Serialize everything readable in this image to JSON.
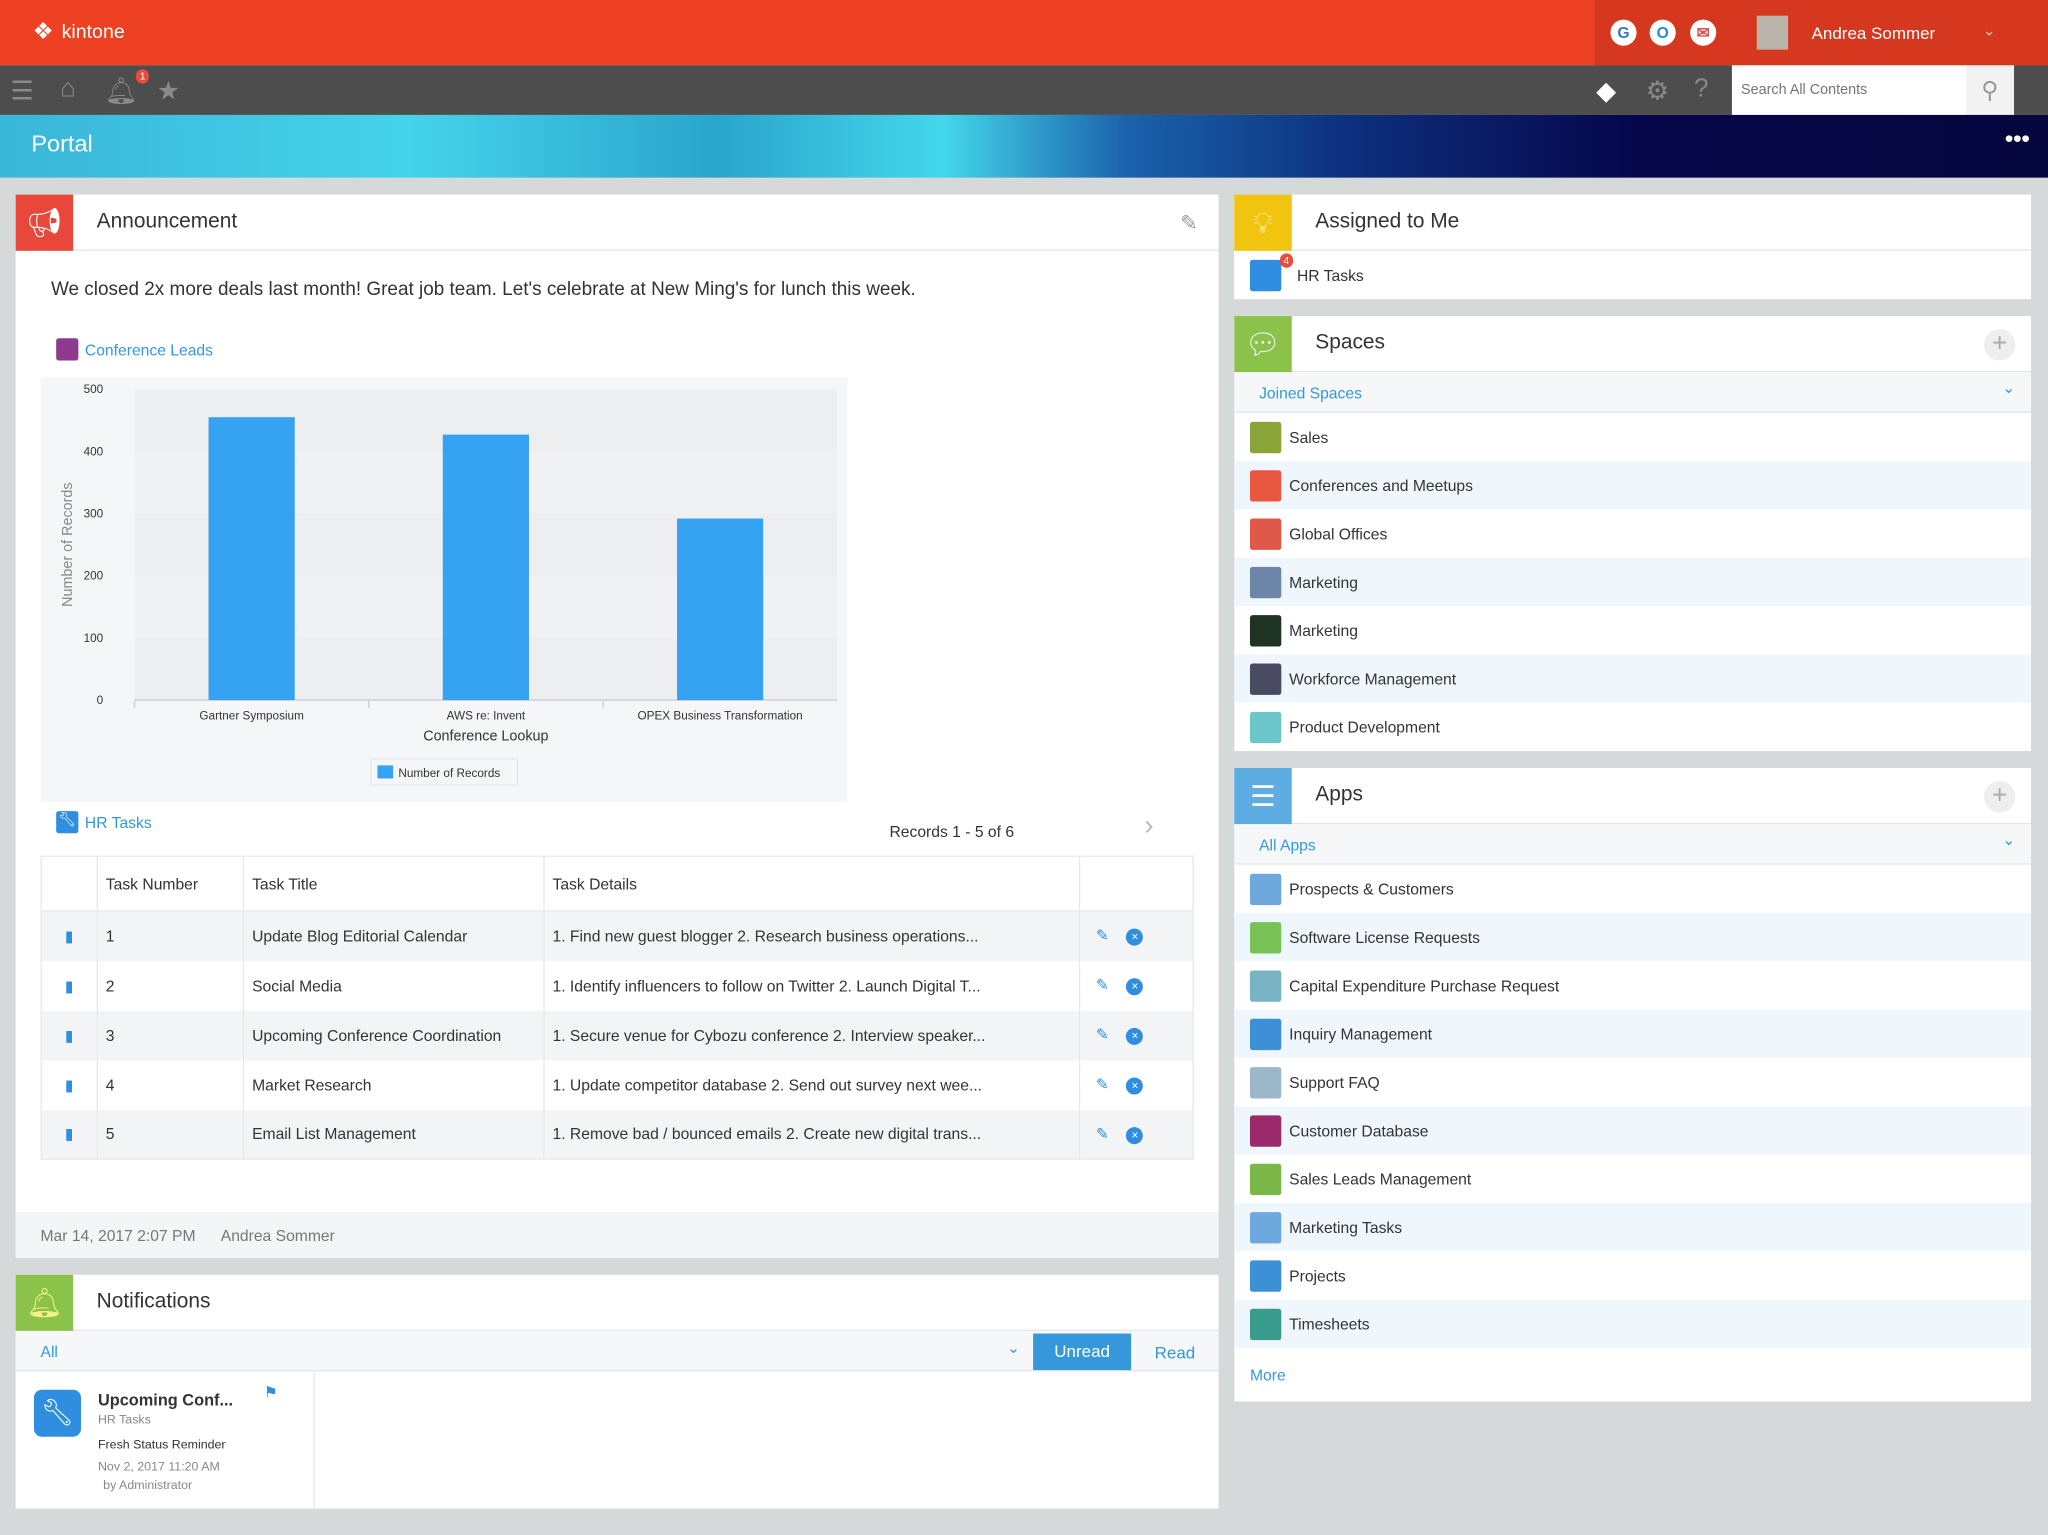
{
  "header": {
    "brand": "kintone",
    "user_name": "Andrea Sommer",
    "notification_count": "1",
    "search_placeholder": "Search All Contents",
    "colors": {
      "brand": "#ee4023",
      "accent": "#3498db"
    }
  },
  "banner": {
    "title": "Portal"
  },
  "announcement": {
    "title": "Announcement",
    "message": "We closed 2x more deals last month! Great job team. Let's celebrate at New Ming's for lunch this week.",
    "chart_link": "Conference Leads",
    "table_link": "HR Tasks",
    "records_label": "Records 1 - 5  of 6",
    "posted_at": "Mar 14, 2017 2:07 PM",
    "posted_by": "Andrea Sommer"
  },
  "chart_data": {
    "type": "bar",
    "title": "",
    "categories": [
      "Gartner Symposium",
      "AWS re: Invent",
      "OPEX Business Transformation"
    ],
    "series": [
      {
        "name": "Number of Records",
        "values": [
          455,
          427,
          292
        ]
      }
    ],
    "xlabel": "Conference Lookup",
    "ylabel": "Number of Records",
    "ylim": [
      0,
      500
    ],
    "yticks": [
      "0",
      "100",
      "200",
      "300",
      "400",
      "500"
    ],
    "grid": true,
    "legend": "bottom-center",
    "color": "#36a3f2"
  },
  "tasks": {
    "columns": [
      "Task Number",
      "Task Title",
      "Task Details"
    ],
    "rows": [
      {
        "num": "1",
        "title": "Update Blog Editorial Calendar",
        "details": "1. Find new guest blogger  2. Research business operations..."
      },
      {
        "num": "2",
        "title": "Social Media",
        "details": "1. Identify influencers to follow on Twitter 2. Launch Digital T..."
      },
      {
        "num": "3",
        "title": "Upcoming Conference Coordination",
        "details": "1. Secure venue for Cybozu conference 2. Interview speaker..."
      },
      {
        "num": "4",
        "title": "Market Research",
        "details": "1. Update competitor database 2. Send out survey next wee..."
      },
      {
        "num": "5",
        "title": "Email List Management",
        "details": "1. Remove bad / bounced emails 2. Create new digital trans..."
      }
    ]
  },
  "notifications": {
    "title": "Notifications",
    "filter": "All",
    "tab_unread": "Unread",
    "tab_read": "Read",
    "item": {
      "title": "Upcoming Conf...",
      "app": "HR Tasks",
      "message": "Fresh Status Reminder",
      "date": "Nov 2, 2017 11:20 AM",
      "by": "by Administrator"
    }
  },
  "assigned": {
    "title": "Assigned to Me",
    "items": [
      {
        "label": "HR Tasks",
        "count": "4"
      }
    ]
  },
  "spaces": {
    "title": "Spaces",
    "filter": "Joined Spaces",
    "items": [
      {
        "label": "Sales",
        "color": "#8aa43a"
      },
      {
        "label": "Conferences and Meetups",
        "color": "#e8573f"
      },
      {
        "label": "Global Offices",
        "color": "#e0584a"
      },
      {
        "label": "Marketing",
        "color": "#6d86a8"
      },
      {
        "label": "Marketing",
        "color": "#1f3324"
      },
      {
        "label": "Workforce Management",
        "color": "#4a4a62"
      },
      {
        "label": "Product Development",
        "color": "#6cc6c9"
      }
    ]
  },
  "apps": {
    "title": "Apps",
    "filter": "All Apps",
    "more": "More",
    "items": [
      {
        "label": "Prospects & Customers",
        "color": "#6fa8dc"
      },
      {
        "label": "Software License Requests",
        "color": "#79c257"
      },
      {
        "label": "Capital Expenditure Purchase Request",
        "color": "#77b3c2"
      },
      {
        "label": "Inquiry Management",
        "color": "#3d8fd6"
      },
      {
        "label": "Support FAQ",
        "color": "#9bb8c8"
      },
      {
        "label": "Customer Database",
        "color": "#9b2a6a"
      },
      {
        "label": "Sales Leads Management",
        "color": "#7ab648"
      },
      {
        "label": "Marketing Tasks",
        "color": "#6fa8dc"
      },
      {
        "label": "Projects",
        "color": "#3d8fd6"
      },
      {
        "label": "Timesheets",
        "color": "#3a9c8c"
      }
    ]
  }
}
